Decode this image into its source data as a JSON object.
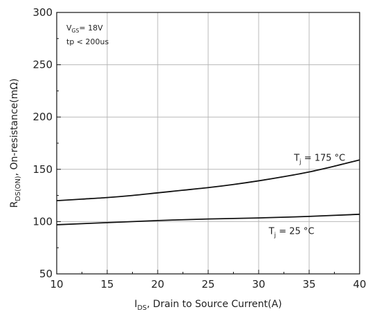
{
  "chart_data": {
    "type": "line",
    "xlabel": {
      "main": "I",
      "sub": "DS",
      "rest": ", Drain to Source Current(A)"
    },
    "ylabel": {
      "main": "R",
      "sub": "DS(ON)",
      "rest": ", On-resistance(mΩ)"
    },
    "xlim": [
      10,
      40
    ],
    "ylim": [
      50,
      300
    ],
    "xticks": [
      10,
      15,
      20,
      25,
      30,
      35,
      40
    ],
    "yticks": [
      50,
      100,
      150,
      200,
      250,
      300
    ],
    "x_minor_step": 2.5,
    "y_minor_step": 25,
    "grid": true,
    "series": [
      {
        "name": "T_j = 175 °C",
        "x": [
          10,
          12.5,
          15,
          17.5,
          20,
          22.5,
          25,
          27.5,
          30,
          32.5,
          35,
          37.5,
          40
        ],
        "y": [
          120,
          121.5,
          123,
          125,
          127.5,
          130,
          132.5,
          135.5,
          139,
          143,
          147.5,
          153,
          159
        ]
      },
      {
        "name": "T_j = 25 °C",
        "x": [
          10,
          15,
          20,
          25,
          30,
          35,
          40
        ],
        "y": [
          97,
          99,
          101,
          102.5,
          103.5,
          105,
          107
        ]
      }
    ],
    "annotations": {
      "conditions": {
        "vgs": {
          "main": "V",
          "sub": "GS",
          "rest": "= 18V"
        },
        "tp": "tp < 200us"
      },
      "label_175": {
        "main": "T",
        "sub": "j",
        "rest": " = 175 °C",
        "x": 33.5,
        "y": 158
      },
      "label_25": {
        "main": "T",
        "sub": "j",
        "rest": " = 25 °C",
        "x": 31,
        "y": 88
      }
    }
  }
}
